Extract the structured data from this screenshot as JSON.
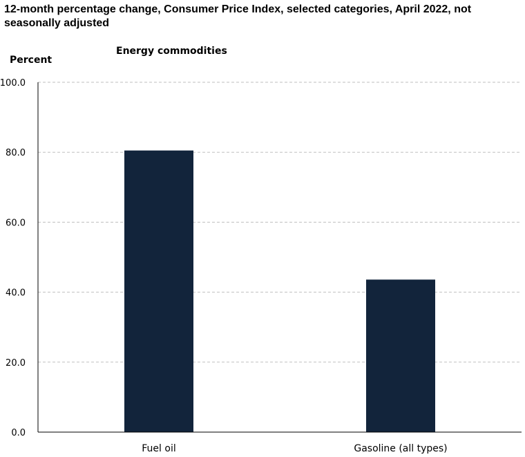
{
  "chart_data": {
    "type": "bar",
    "title": "12-month percentage change, Consumer Price Index, selected categories, April 2022, not seasonally adjusted",
    "subtitle": "Energy commodities",
    "ylabel": "Percent",
    "xlabel": "",
    "categories": [
      "Fuel oil",
      "Gasoline (all types)"
    ],
    "values": [
      80.5,
      43.6
    ],
    "ylim": [
      0,
      100
    ],
    "yticks": [
      "0.0",
      "20.0",
      "40.0",
      "60.0",
      "80.0",
      "100.0"
    ],
    "ytick_values": [
      0,
      20,
      40,
      60,
      80,
      100
    ],
    "grid": true,
    "bar_color": "#12243b",
    "grid_color": "#bfbfbf"
  }
}
